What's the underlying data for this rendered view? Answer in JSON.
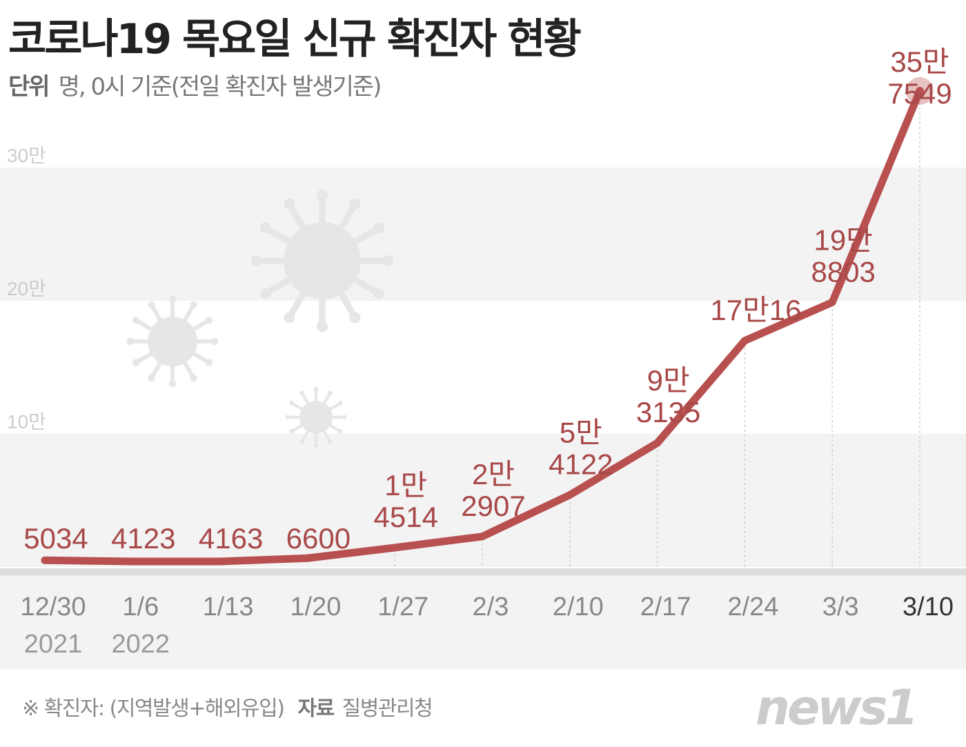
{
  "title": "코로나19 목요일 신규 확진자 현황",
  "subtitle": {
    "unit_label": "단위",
    "unit_text": "명, 0시 기준(전일 확진자 발생기준)"
  },
  "footer": {
    "note": "※ 확진자: (지역발생+해외유입)",
    "source_label": "자료",
    "source": "질병관리청"
  },
  "logo": "news1",
  "colors": {
    "line": "#b85050",
    "label": "#a84848",
    "band": "#f3f3f3",
    "tick": "#777"
  },
  "chart_data": {
    "type": "line",
    "title": "코로나19 목요일 신규 확진자 현황",
    "ylabel": "명",
    "ylim": [
      0,
      300000
    ],
    "yticks": [
      {
        "value": 100000,
        "label": "10만"
      },
      {
        "value": 200000,
        "label": "20만"
      },
      {
        "value": 300000,
        "label": "30만"
      }
    ],
    "categories": [
      "12/30",
      "1/6",
      "1/13",
      "1/20",
      "1/27",
      "2/3",
      "2/10",
      "2/17",
      "2/24",
      "3/3",
      "3/10"
    ],
    "year_labels": [
      "2021",
      "2022",
      "",
      "",
      "",
      "",
      "",
      "",
      "",
      "",
      ""
    ],
    "values": [
      5034,
      4123,
      4163,
      6600,
      14514,
      22907,
      54122,
      93135,
      170016,
      198803,
      357549
    ],
    "data_labels": [
      [
        "5034"
      ],
      [
        "4123"
      ],
      [
        "4163"
      ],
      [
        "6600"
      ],
      [
        "1만",
        "4514"
      ],
      [
        "2만",
        "2907"
      ],
      [
        "5만",
        "4122"
      ],
      [
        "9만",
        "3135"
      ],
      [
        "17만16"
      ],
      [
        "19만",
        "8803"
      ],
      [
        "35만",
        "7549"
      ]
    ],
    "highlight_index": 10,
    "grid": "alternating-bands"
  }
}
